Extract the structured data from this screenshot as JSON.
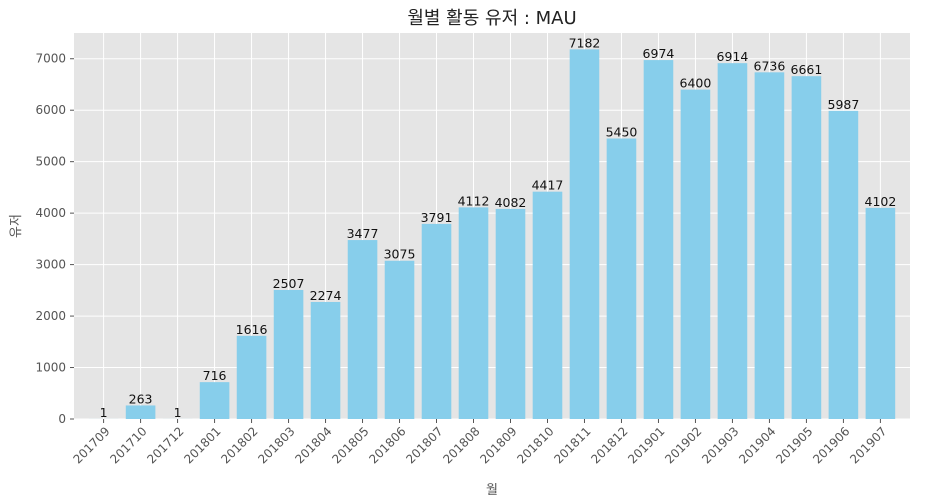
{
  "chart_data": {
    "type": "bar",
    "title": "월별 활동 유저 : MAU",
    "xlabel": "월",
    "ylabel": "유저",
    "categories": [
      "201709",
      "201710",
      "201712",
      "201801",
      "201802",
      "201803",
      "201804",
      "201805",
      "201806",
      "201807",
      "201808",
      "201809",
      "201810",
      "201811",
      "201812",
      "201901",
      "201902",
      "201903",
      "201904",
      "201905",
      "201906",
      "201907"
    ],
    "values": [
      1,
      263,
      1,
      716,
      1616,
      2507,
      2274,
      3477,
      3075,
      3791,
      4112,
      4082,
      4417,
      7182,
      5450,
      6974,
      6400,
      6914,
      6736,
      6661,
      5987,
      4102
    ],
    "ylim": [
      0,
      7500
    ],
    "yticks": [
      0,
      1000,
      2000,
      3000,
      4000,
      5000,
      6000,
      7000
    ],
    "grid": true,
    "bar_color": "#87ceeb",
    "background_color": "#e5e5e5",
    "grid_color": "#ffffff"
  }
}
